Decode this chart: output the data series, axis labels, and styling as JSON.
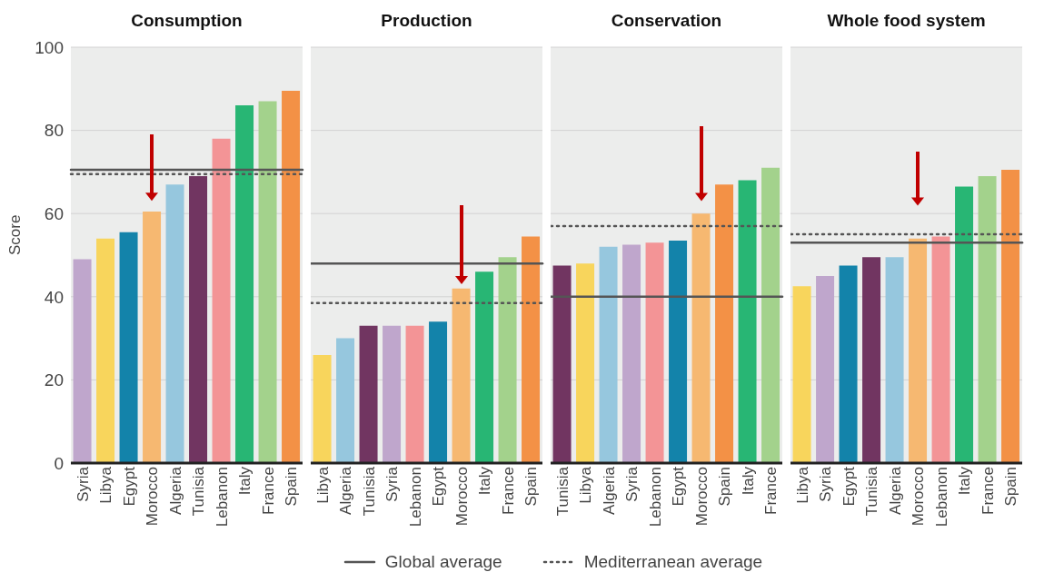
{
  "chart_data": [
    {
      "type": "bar",
      "title": "Consumption",
      "ylabel": "Score",
      "categories": [
        "Syria",
        "Libya",
        "Egypt",
        "Morocco",
        "Algeria",
        "Tunisia",
        "Lebanon",
        "Italy",
        "France",
        "Spain"
      ],
      "values": [
        49,
        54,
        55.5,
        60.5,
        67,
        69,
        78,
        86,
        87,
        89.5
      ],
      "colors": [
        "#bfa6cc",
        "#f8d55c",
        "#1383aa",
        "#f6b871",
        "#96c7de",
        "#713561",
        "#f39496",
        "#28b674",
        "#a3d28c",
        "#f39146"
      ],
      "ylim": [
        0,
        100
      ],
      "yticks": [
        0,
        20,
        40,
        60,
        80,
        100
      ],
      "grid": "y",
      "legend": "bottom",
      "ref_lines": [
        {
          "axis": "y",
          "value": 70.5,
          "label": "Global average",
          "color": "#555555",
          "line_style": "solid"
        },
        {
          "axis": "y",
          "value": 69.5,
          "label": "Mediterranean average",
          "color": "#555555",
          "line_style": "dotted"
        }
      ]
    },
    {
      "type": "bar",
      "title": "Production",
      "categories": [
        "Libya",
        "Algeria",
        "Tunisia",
        "Syria",
        "Lebanon",
        "Egypt",
        "Morocco",
        "Italy",
        "France",
        "Spain"
      ],
      "values": [
        26,
        30,
        33,
        33,
        33,
        34,
        42,
        46,
        49.5,
        54.5
      ],
      "colors": [
        "#f8d55c",
        "#96c7de",
        "#713561",
        "#bfa6cc",
        "#f39496",
        "#1383aa",
        "#f6b871",
        "#28b674",
        "#a3d28c",
        "#f39146"
      ],
      "ylim": [
        0,
        100
      ],
      "yticks": [
        0,
        20,
        40,
        60,
        80,
        100
      ],
      "grid": "y",
      "tick_labels": "x",
      "ref_lines": [
        {
          "axis": "y",
          "value": 48,
          "color": "#555555",
          "line_style": "solid"
        },
        {
          "axis": "y",
          "value": 38.5,
          "color": "#555555",
          "line_style": "dotted"
        }
      ]
    },
    {
      "type": "bar",
      "title": "Conservation",
      "categories": [
        "Tunisia",
        "Libya",
        "Algeria",
        "Syria",
        "Lebanon",
        "Egypt",
        "Morocco",
        "Spain",
        "Italy",
        "France"
      ],
      "values": [
        47.5,
        48,
        52,
        52.5,
        53,
        53.5,
        60,
        67,
        68,
        71
      ],
      "colors": [
        "#713561",
        "#f8d55c",
        "#96c7de",
        "#bfa6cc",
        "#f39496",
        "#1383aa",
        "#f6b871",
        "#f39146",
        "#28b674",
        "#a3d28c"
      ],
      "ylim": [
        0,
        100
      ],
      "yticks": [
        0,
        20,
        40,
        60,
        80,
        100
      ],
      "grid": "y",
      "tick_labels": "x",
      "ref_lines": [
        {
          "axis": "y",
          "value": 40,
          "color": "#555555",
          "line_style": "solid"
        },
        {
          "axis": "y",
          "value": 57,
          "color": "#555555",
          "line_style": "dotted"
        }
      ]
    },
    {
      "type": "bar",
      "title": "Whole food system",
      "categories": [
        "Libya",
        "Syria",
        "Egypt",
        "Tunisia",
        "Algeria",
        "Morocco",
        "Lebanon",
        "Italy",
        "France",
        "Spain"
      ],
      "values": [
        42.5,
        45,
        47.5,
        49.5,
        49.5,
        54,
        54.5,
        66.5,
        69,
        70.5
      ],
      "colors": [
        "#f8d55c",
        "#bfa6cc",
        "#1383aa",
        "#713561",
        "#96c7de",
        "#f6b871",
        "#f39496",
        "#28b674",
        "#a3d28c",
        "#f39146"
      ],
      "ylim": [
        0,
        100
      ],
      "yticks": [
        0,
        20,
        40,
        60,
        80,
        100
      ],
      "grid": "y",
      "tick_labels": "x",
      "ref_lines": [
        {
          "axis": "y",
          "value": 53,
          "color": "#555555",
          "line_style": "solid"
        },
        {
          "axis": "y",
          "value": 55,
          "color": "#555555",
          "line_style": "dotted"
        }
      ]
    }
  ]
}
